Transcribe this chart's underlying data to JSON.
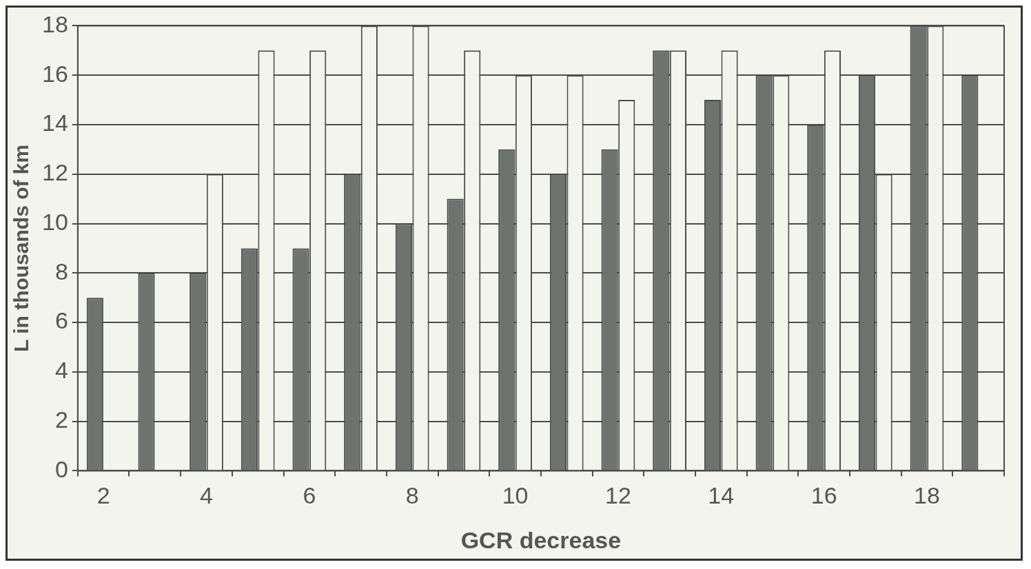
{
  "chart_data": {
    "type": "bar",
    "xlabel": "GCR decrease",
    "ylabel": "L in thousands of km",
    "categories": [
      "2",
      null,
      "4",
      null,
      "6",
      null,
      "8",
      null,
      "10",
      null,
      "12",
      null,
      "14",
      null,
      "16",
      null,
      "18",
      null
    ],
    "series": [
      {
        "color": "#6e7370",
        "values": [
          7,
          8,
          8,
          9,
          9,
          12,
          10,
          11,
          13,
          12,
          13,
          17,
          15,
          16,
          14,
          16,
          18,
          16
        ]
      },
      {
        "color": "#f4f4ee",
        "values": [
          null,
          null,
          12,
          17,
          17,
          18,
          18,
          17,
          16,
          16,
          15,
          17,
          17,
          16,
          17,
          12,
          18,
          null
        ]
      }
    ],
    "ylim": [
      0,
      18
    ],
    "yticks": [
      0,
      2,
      4,
      6,
      8,
      10,
      12,
      14,
      16,
      18
    ],
    "grid": "y",
    "legend": false
  }
}
